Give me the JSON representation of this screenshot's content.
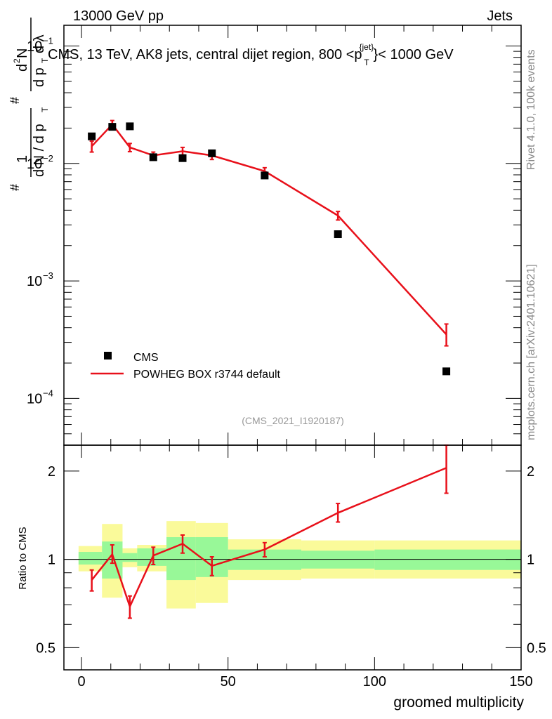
{
  "header": {
    "left": "13000 GeV pp",
    "right": "Jets"
  },
  "side_labels": {
    "top": "Rivet 4.1.0,  100k events",
    "bottom": "mcplots.cern.ch [arXiv:2401.10621]"
  },
  "colors": {
    "mc": "#e8101a",
    "band_inner": "#98f898",
    "band_outer": "#fafa9a",
    "data": "#000000"
  },
  "chart_data": [
    {
      "type": "scatter",
      "title": "CMS, 13 TeV, AK8 jets, central dijet region, 800 <p_T^{jet}< 1000 GeV",
      "title_main": "CMS, 13 TeV, AK8 jets, central dijet region, 800 <p",
      "title_sup": "{jet}",
      "title_sub": "T",
      "title_end": "}< 1000 GeV",
      "ylabel": "1/(dN/dp_T) d²N/(dp_T dλ)",
      "ylabel_parts": {
        "frac1_num": "1",
        "frac1_den": "d N / d p",
        "frac2_num": "d",
        "frac2_num_sup": "2",
        "frac2_num_end": "N",
        "frac2_den": "d p",
        "frac2_den_end": "d λ",
        "sub_T": "T",
        "hash": "#"
      },
      "yscale": "log",
      "ylim": [
        4e-05,
        0.15
      ],
      "xlim": [
        -6,
        150
      ],
      "y_ticks": [
        {
          "value": 0.1,
          "label": "10",
          "exp": "−1"
        },
        {
          "value": 0.01,
          "label": "10",
          "exp": "−2"
        },
        {
          "value": 0.001,
          "label": "10",
          "exp": "−3"
        },
        {
          "value": 0.0001,
          "label": "10",
          "exp": "−4"
        }
      ],
      "watermark": "(CMS_2021_I1920187)",
      "legend": {
        "position": "bottom-left",
        "entries": [
          "CMS",
          "POWHEG BOX r3744 default"
        ]
      },
      "series": [
        {
          "name": "CMS",
          "style": "markers",
          "x": [
            3.5,
            10.5,
            16.5,
            24.5,
            34.5,
            44.5,
            62.5,
            87.5,
            124.5
          ],
          "values": [
            0.017,
            0.0205,
            0.0207,
            0.0113,
            0.0111,
            0.0122,
            0.0079,
            0.0025,
            0.00017
          ]
        },
        {
          "name": "POWHEG BOX r3744 default",
          "style": "line",
          "x": [
            3.5,
            10.5,
            16.5,
            24.5,
            34.5,
            44.5,
            62.5,
            87.5,
            124.5
          ],
          "values": [
            0.014,
            0.0215,
            0.0137,
            0.0117,
            0.0127,
            0.0117,
            0.0086,
            0.0036,
            0.00035
          ],
          "err_low": [
            0.0125,
            0.0198,
            0.0126,
            0.0109,
            0.0118,
            0.0108,
            0.008,
            0.0033,
            0.00028
          ],
          "err_high": [
            0.0155,
            0.0232,
            0.0148,
            0.0125,
            0.0137,
            0.0127,
            0.0092,
            0.0039,
            0.00043
          ]
        }
      ]
    },
    {
      "type": "line",
      "ylabel": "Ratio to CMS",
      "xlabel": "groomed multiplicity",
      "yscale": "log",
      "ylim": [
        0.42,
        2.45
      ],
      "xlim": [
        -6,
        150
      ],
      "x_ticks": [
        0,
        50,
        100,
        150
      ],
      "y_ticks": [
        {
          "value": 0.5,
          "label": "0.5"
        },
        {
          "value": 1,
          "label": "1"
        },
        {
          "value": 2,
          "label": "2"
        }
      ],
      "bins": [
        {
          "lo": -1,
          "hi": 7,
          "inner": [
            0.96,
            1.06
          ],
          "outer": [
            0.91,
            1.11
          ]
        },
        {
          "lo": 7,
          "hi": 14,
          "inner": [
            0.86,
            1.15
          ],
          "outer": [
            0.74,
            1.32
          ]
        },
        {
          "lo": 14,
          "hi": 19,
          "inner": [
            0.98,
            1.05
          ],
          "outer": [
            0.94,
            1.09
          ]
        },
        {
          "lo": 19,
          "hi": 29,
          "inner": [
            0.95,
            1.09
          ],
          "outer": [
            0.91,
            1.12
          ]
        },
        {
          "lo": 29,
          "hi": 39,
          "inner": [
            0.85,
            1.19
          ],
          "outer": [
            0.68,
            1.35
          ]
        },
        {
          "lo": 39,
          "hi": 50,
          "inner": [
            0.87,
            1.19
          ],
          "outer": [
            0.71,
            1.33
          ]
        },
        {
          "lo": 50,
          "hi": 75,
          "inner": [
            0.92,
            1.08
          ],
          "outer": [
            0.85,
            1.17
          ]
        },
        {
          "lo": 75,
          "hi": 100,
          "inner": [
            0.93,
            1.07
          ],
          "outer": [
            0.86,
            1.16
          ]
        },
        {
          "lo": 100,
          "hi": 150,
          "inner": [
            0.92,
            1.08
          ],
          "outer": [
            0.86,
            1.16
          ]
        }
      ],
      "series": [
        {
          "name": "POWHEG BOX r3744 default",
          "x": [
            3.5,
            10.5,
            16.5,
            24.5,
            34.5,
            44.5,
            62.5,
            87.5,
            124.5
          ],
          "values": [
            0.85,
            1.04,
            0.69,
            1.03,
            1.13,
            0.95,
            1.08,
            1.44,
            2.05
          ],
          "err_low": [
            0.78,
            0.97,
            0.63,
            0.96,
            1.05,
            0.88,
            1.02,
            1.34,
            1.68
          ],
          "err_high": [
            0.92,
            1.12,
            0.75,
            1.1,
            1.21,
            1.02,
            1.14,
            1.55,
            2.45
          ]
        }
      ]
    }
  ]
}
